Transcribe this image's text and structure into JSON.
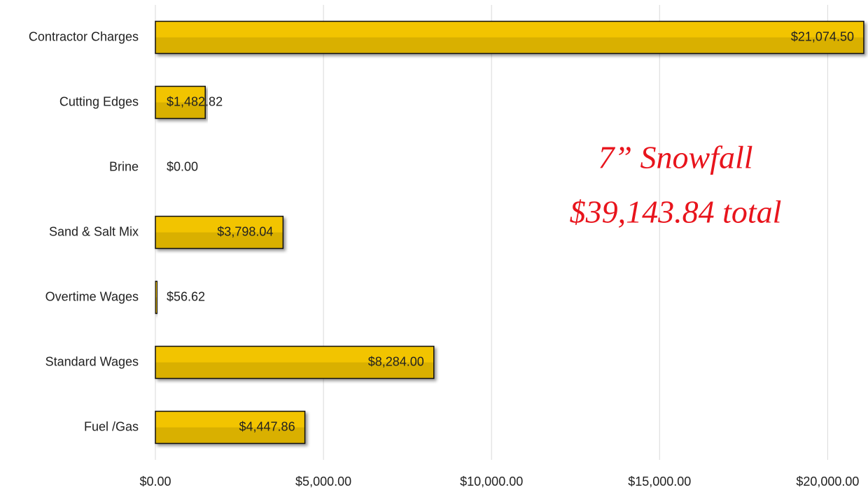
{
  "chart_data": {
    "type": "bar",
    "orientation": "horizontal",
    "categories": [
      "Contractor Charges",
      "Cutting Edges",
      "Brine",
      "Sand & Salt Mix",
      "Overtime Wages",
      "Standard Wages",
      "Fuel /Gas"
    ],
    "values": [
      21074.5,
      1482.82,
      0,
      3798.04,
      56.62,
      8284,
      4447.86
    ],
    "value_labels": [
      "$21,074.50",
      "$1,482.82",
      "$0.00",
      "$3,798.04",
      "$56.62",
      "$8,284.00",
      "$4,447.86"
    ],
    "color": "#f2c400",
    "xlim": [
      0,
      21200
    ],
    "xticks": [
      {
        "value": 0,
        "label": "$0.00"
      },
      {
        "value": 5000,
        "label": "$5,000.00"
      },
      {
        "value": 10000,
        "label": "$10,000.00"
      },
      {
        "value": 15000,
        "label": "$15,000.00"
      },
      {
        "value": 20000,
        "label": "$20,000.00"
      }
    ],
    "grid": true,
    "annotations": [
      "7” Snowfall",
      "$39,143.84 total"
    ]
  }
}
